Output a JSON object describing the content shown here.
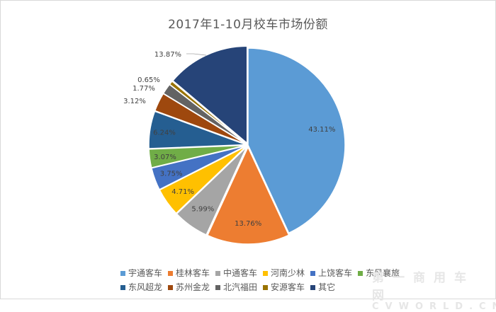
{
  "chart_data": {
    "type": "pie",
    "title": "2017年1-10月校车市场份额",
    "start_angle_deg": 0,
    "direction": "clockwise",
    "slices": [
      {
        "label": "宇通客车",
        "value": 43.11,
        "display": "43.11%",
        "color": "#5B9BD5"
      },
      {
        "label": "桂林客车",
        "value": 13.76,
        "display": "13.76%",
        "color": "#ED7D31"
      },
      {
        "label": "中通客车",
        "value": 5.99,
        "display": "5.99%",
        "color": "#A5A5A5"
      },
      {
        "label": "河南少林",
        "value": 4.71,
        "display": "4.71%",
        "color": "#FFC000"
      },
      {
        "label": "上饶客车",
        "value": 3.75,
        "display": "3.75%",
        "color": "#4472C4"
      },
      {
        "label": "东风襄旅",
        "value": 3.07,
        "display": "3.07%",
        "color": "#70AD47"
      },
      {
        "label": "东风超龙",
        "value": 6.24,
        "display": "6.24%",
        "color": "#255E91"
      },
      {
        "label": "苏州金龙",
        "value": 3.12,
        "display": "3.12%",
        "color": "#9E480E"
      },
      {
        "label": "北汽福田",
        "value": 1.77,
        "display": "1.77%",
        "color": "#636363"
      },
      {
        "label": "安源客车",
        "value": 0.65,
        "display": "0.65%",
        "color": "#997300"
      },
      {
        "label": "其它",
        "value": 13.87,
        "display": "13.87%",
        "color": "#264478"
      }
    ],
    "legend_position": "bottom",
    "data_labels": true,
    "units": "%"
  },
  "title": "2017年1-10月校车市场份额",
  "legend": {
    "rows": [
      [
        0,
        1,
        2,
        3,
        4,
        5
      ],
      [
        6,
        7,
        8,
        9,
        10
      ]
    ]
  },
  "watermark": {
    "cn": "第一商用车网",
    "en": "CVWORLD.CN"
  }
}
